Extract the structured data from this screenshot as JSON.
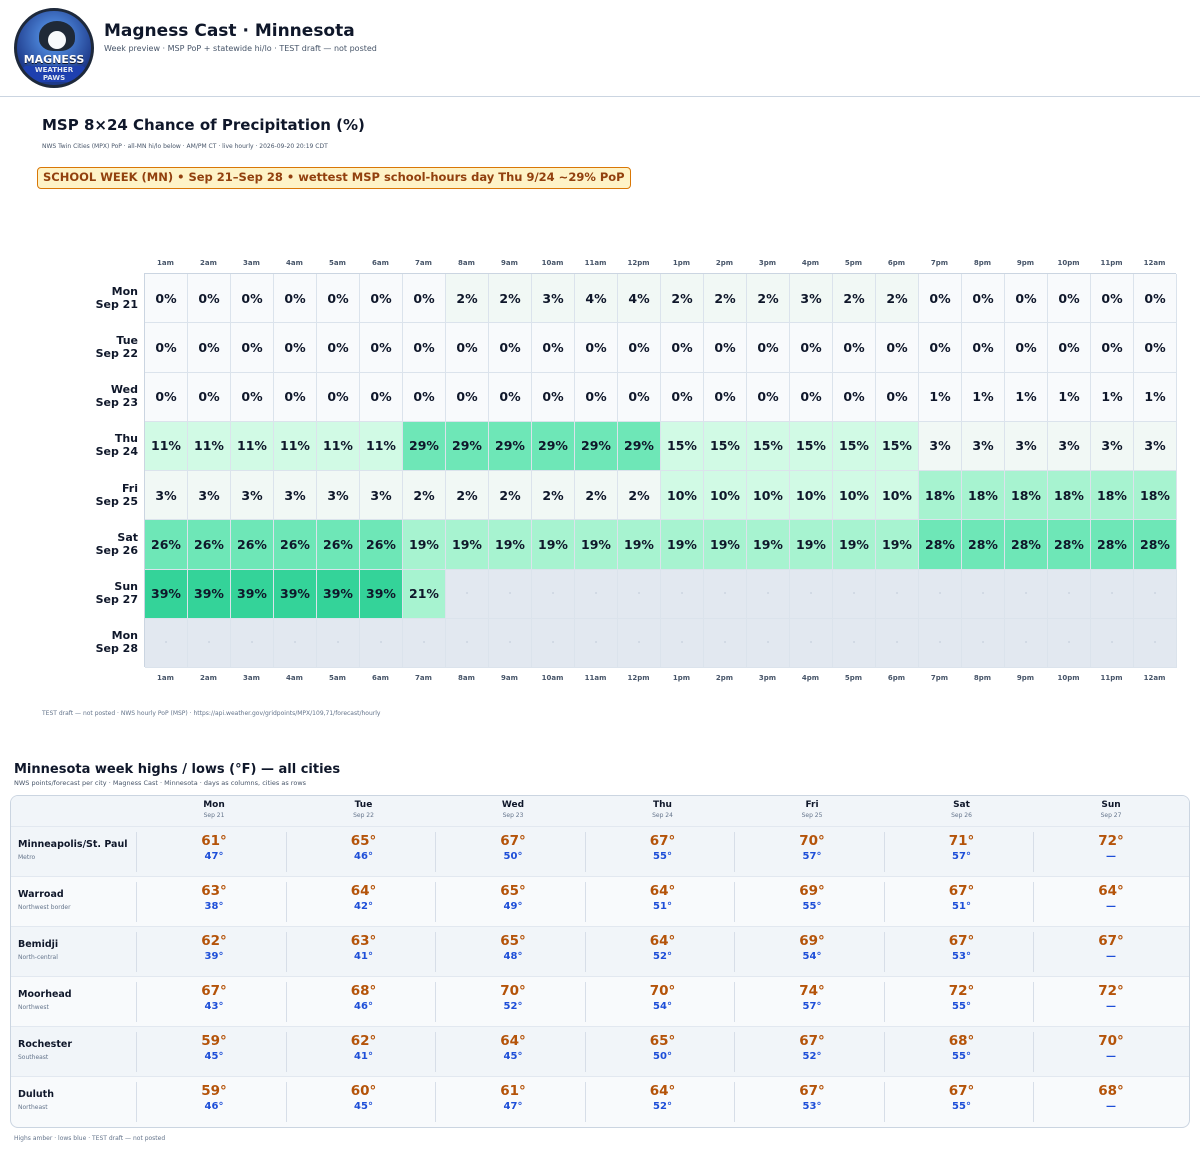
{
  "app": {
    "title": "Magness Cast · Minnesota",
    "subtitle": "Week preview  ·  MSP PoP + statewide hi/lo  ·  TEST draft — not posted",
    "logo_text_1": "MAGNESS",
    "logo_text_2": "WEATHER PAWS"
  },
  "pop": {
    "title": "MSP 8×24 Chance of Precipitation (%)",
    "meta": "NWS Twin Cities (MPX) PoP · all-MN hi/lo below · AM/PM CT · live hourly · 2026-09-20 20:19 CDT",
    "banner": "SCHOOL WEEK (MN)  •  Sep 21–Sep 28  •  wettest MSP school-hours day Thu 9/24 ~29% PoP",
    "hours": [
      "1am",
      "2am",
      "3am",
      "4am",
      "5am",
      "6am",
      "7am",
      "8am",
      "9am",
      "10am",
      "11am",
      "12pm",
      "1pm",
      "2pm",
      "3pm",
      "4pm",
      "5pm",
      "6pm",
      "7pm",
      "8pm",
      "9pm",
      "10pm",
      "11pm",
      "12am"
    ],
    "days": [
      {
        "day": "Mon",
        "date": "Sep 21",
        "values": [
          0,
          0,
          0,
          0,
          0,
          0,
          0,
          2,
          2,
          3,
          4,
          4,
          2,
          2,
          2,
          3,
          2,
          2,
          0,
          0,
          0,
          0,
          0,
          0
        ]
      },
      {
        "day": "Tue",
        "date": "Sep 22",
        "values": [
          0,
          0,
          0,
          0,
          0,
          0,
          0,
          0,
          0,
          0,
          0,
          0,
          0,
          0,
          0,
          0,
          0,
          0,
          0,
          0,
          0,
          0,
          0,
          0
        ]
      },
      {
        "day": "Wed",
        "date": "Sep 23",
        "values": [
          0,
          0,
          0,
          0,
          0,
          0,
          0,
          0,
          0,
          0,
          0,
          0,
          0,
          0,
          0,
          0,
          0,
          0,
          1,
          1,
          1,
          1,
          1,
          1
        ]
      },
      {
        "day": "Thu",
        "date": "Sep 24",
        "values": [
          11,
          11,
          11,
          11,
          11,
          11,
          29,
          29,
          29,
          29,
          29,
          29,
          15,
          15,
          15,
          15,
          15,
          15,
          3,
          3,
          3,
          3,
          3,
          3
        ]
      },
      {
        "day": "Fri",
        "date": "Sep 25",
        "values": [
          3,
          3,
          3,
          3,
          3,
          3,
          2,
          2,
          2,
          2,
          2,
          2,
          10,
          10,
          10,
          10,
          10,
          10,
          18,
          18,
          18,
          18,
          18,
          18
        ]
      },
      {
        "day": "Sat",
        "date": "Sep 26",
        "values": [
          26,
          26,
          26,
          26,
          26,
          26,
          19,
          19,
          19,
          19,
          19,
          19,
          19,
          19,
          19,
          19,
          19,
          19,
          28,
          28,
          28,
          28,
          28,
          28
        ]
      },
      {
        "day": "Sun",
        "date": "Sep 27",
        "values": [
          39,
          39,
          39,
          39,
          39,
          39,
          21,
          null,
          null,
          null,
          null,
          null,
          null,
          null,
          null,
          null,
          null,
          null,
          null,
          null,
          null,
          null,
          null,
          null
        ]
      },
      {
        "day": "Mon",
        "date": "Sep 28",
        "values": [
          null,
          null,
          null,
          null,
          null,
          null,
          null,
          null,
          null,
          null,
          null,
          null,
          null,
          null,
          null,
          null,
          null,
          null,
          null,
          null,
          null,
          null,
          null,
          null
        ]
      }
    ],
    "empty_marker": "·",
    "footer": "TEST draft — not posted  ·  NWS hourly PoP (MSP)  ·  https://api.weather.gov/gridpoints/MPX/109,71/forecast/hourly",
    "colors": {
      "none": "#f8fafc",
      "trace": "#f1f8f5",
      "low": "#ecfdf5",
      "light": "#d1fae5",
      "mid": "#a7f3d0",
      "high": "#6ee7b7",
      "max": "#34d399",
      "empty": "#e2e8f0"
    }
  },
  "highlow": {
    "title": "Minnesota week highs / lows (°F) — all cities",
    "subtitle": "NWS points/forecast per city  ·  Magness Cast · Minnesota  ·  days as columns, cities as rows",
    "days": [
      {
        "day": "Mon",
        "date": "Sep 21"
      },
      {
        "day": "Tue",
        "date": "Sep 22"
      },
      {
        "day": "Wed",
        "date": "Sep 23"
      },
      {
        "day": "Thu",
        "date": "Sep 24"
      },
      {
        "day": "Fri",
        "date": "Sep 25"
      },
      {
        "day": "Sat",
        "date": "Sep 26"
      },
      {
        "day": "Sun",
        "date": "Sep 27"
      }
    ],
    "cities": [
      {
        "name": "Minneapolis/St. Paul",
        "region": "Metro",
        "cells": [
          [
            "61°",
            "47°"
          ],
          [
            "65°",
            "46°"
          ],
          [
            "67°",
            "50°"
          ],
          [
            "67°",
            "55°"
          ],
          [
            "70°",
            "57°"
          ],
          [
            "71°",
            "57°"
          ],
          [
            "72°",
            "—"
          ]
        ]
      },
      {
        "name": "Warroad",
        "region": "Northwest border",
        "cells": [
          [
            "63°",
            "38°"
          ],
          [
            "64°",
            "42°"
          ],
          [
            "65°",
            "49°"
          ],
          [
            "64°",
            "51°"
          ],
          [
            "69°",
            "55°"
          ],
          [
            "67°",
            "51°"
          ],
          [
            "64°",
            "—"
          ]
        ]
      },
      {
        "name": "Bemidji",
        "region": "North-central",
        "cells": [
          [
            "62°",
            "39°"
          ],
          [
            "63°",
            "41°"
          ],
          [
            "65°",
            "48°"
          ],
          [
            "64°",
            "52°"
          ],
          [
            "69°",
            "54°"
          ],
          [
            "67°",
            "53°"
          ],
          [
            "67°",
            "—"
          ]
        ]
      },
      {
        "name": "Moorhead",
        "region": "Northwest",
        "cells": [
          [
            "67°",
            "43°"
          ],
          [
            "68°",
            "46°"
          ],
          [
            "70°",
            "52°"
          ],
          [
            "70°",
            "54°"
          ],
          [
            "74°",
            "57°"
          ],
          [
            "72°",
            "55°"
          ],
          [
            "72°",
            "—"
          ]
        ]
      },
      {
        "name": "Rochester",
        "region": "Southeast",
        "cells": [
          [
            "59°",
            "45°"
          ],
          [
            "62°",
            "41°"
          ],
          [
            "64°",
            "45°"
          ],
          [
            "65°",
            "50°"
          ],
          [
            "67°",
            "52°"
          ],
          [
            "68°",
            "55°"
          ],
          [
            "70°",
            "—"
          ]
        ]
      },
      {
        "name": "Duluth",
        "region": "Northeast",
        "cells": [
          [
            "59°",
            "46°"
          ],
          [
            "60°",
            "45°"
          ],
          [
            "61°",
            "47°"
          ],
          [
            "64°",
            "52°"
          ],
          [
            "67°",
            "53°"
          ],
          [
            "67°",
            "55°"
          ],
          [
            "68°",
            "—"
          ]
        ]
      }
    ],
    "footer": "Highs amber · lows blue  ·  TEST draft — not posted",
    "colors": {
      "high": "#b45309",
      "low": "#1d4ed8"
    }
  }
}
